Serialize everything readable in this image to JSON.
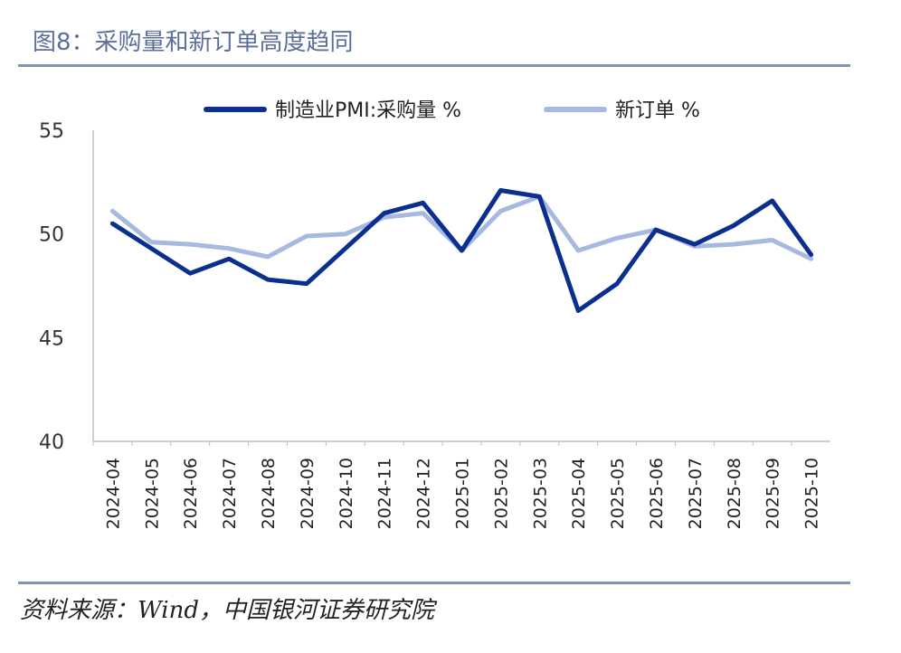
{
  "title": "图8：采购量和新订单高度趋同",
  "source": "资料来源：Wind，中国银河证券研究院",
  "colors": {
    "series1": "#0b2f8e",
    "series2": "#a7b9e0",
    "rule": "#7e93b8",
    "axis": "#bfbfbf"
  },
  "chart_data": {
    "type": "line",
    "title": "",
    "xlabel": "",
    "ylabel": "",
    "ylim": [
      40,
      55
    ],
    "yticks": [
      40,
      45,
      50,
      55
    ],
    "legend_position": "top",
    "categories": [
      "2024-04",
      "2024-05",
      "2024-06",
      "2024-07",
      "2024-08",
      "2024-09",
      "2024-10",
      "2024-11",
      "2024-12",
      "2025-01",
      "2025-02",
      "2025-03",
      "2025-04",
      "2025-05",
      "2025-06",
      "2025-07",
      "2025-08",
      "2025-09",
      "2025-10"
    ],
    "series": [
      {
        "name": "制造业PMI:采购量 %",
        "values": [
          50.5,
          49.3,
          48.1,
          48.8,
          47.8,
          47.6,
          49.3,
          51.0,
          51.5,
          49.2,
          52.1,
          51.8,
          46.3,
          47.6,
          50.2,
          49.5,
          50.4,
          51.6,
          49.0
        ]
      },
      {
        "name": "新订单 %",
        "values": [
          51.1,
          49.6,
          49.5,
          49.3,
          48.9,
          49.9,
          50.0,
          50.8,
          51.0,
          49.2,
          51.1,
          51.8,
          49.2,
          49.8,
          50.2,
          49.4,
          49.5,
          49.7,
          48.8
        ]
      }
    ]
  }
}
